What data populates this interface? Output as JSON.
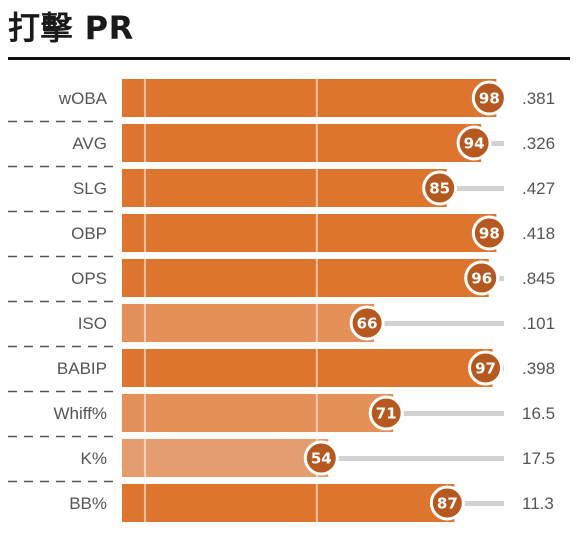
{
  "title": "打擊 PR",
  "colors": {
    "bar_high": "#dd752f",
    "bar_mid": "#e49058",
    "bar_low": "#e49d6f",
    "track": "#d2d2d2",
    "badge": "#b65920",
    "divider": "#555555"
  },
  "chart_data": {
    "type": "bar",
    "orientation": "horizontal",
    "title": "打擊 PR",
    "xlim": [
      0,
      100
    ],
    "categories": [
      "wOBA",
      "AVG",
      "SLG",
      "OBP",
      "OPS",
      "ISO",
      "BABIP",
      "Whiff%",
      "K%",
      "BB%"
    ],
    "values": [
      98,
      94,
      85,
      98,
      96,
      66,
      97,
      71,
      54,
      87
    ],
    "stat_values": [
      ".381",
      ".326",
      ".427",
      ".418",
      ".845",
      ".101",
      ".398",
      "16.5",
      "17.5",
      "11.3"
    ]
  }
}
